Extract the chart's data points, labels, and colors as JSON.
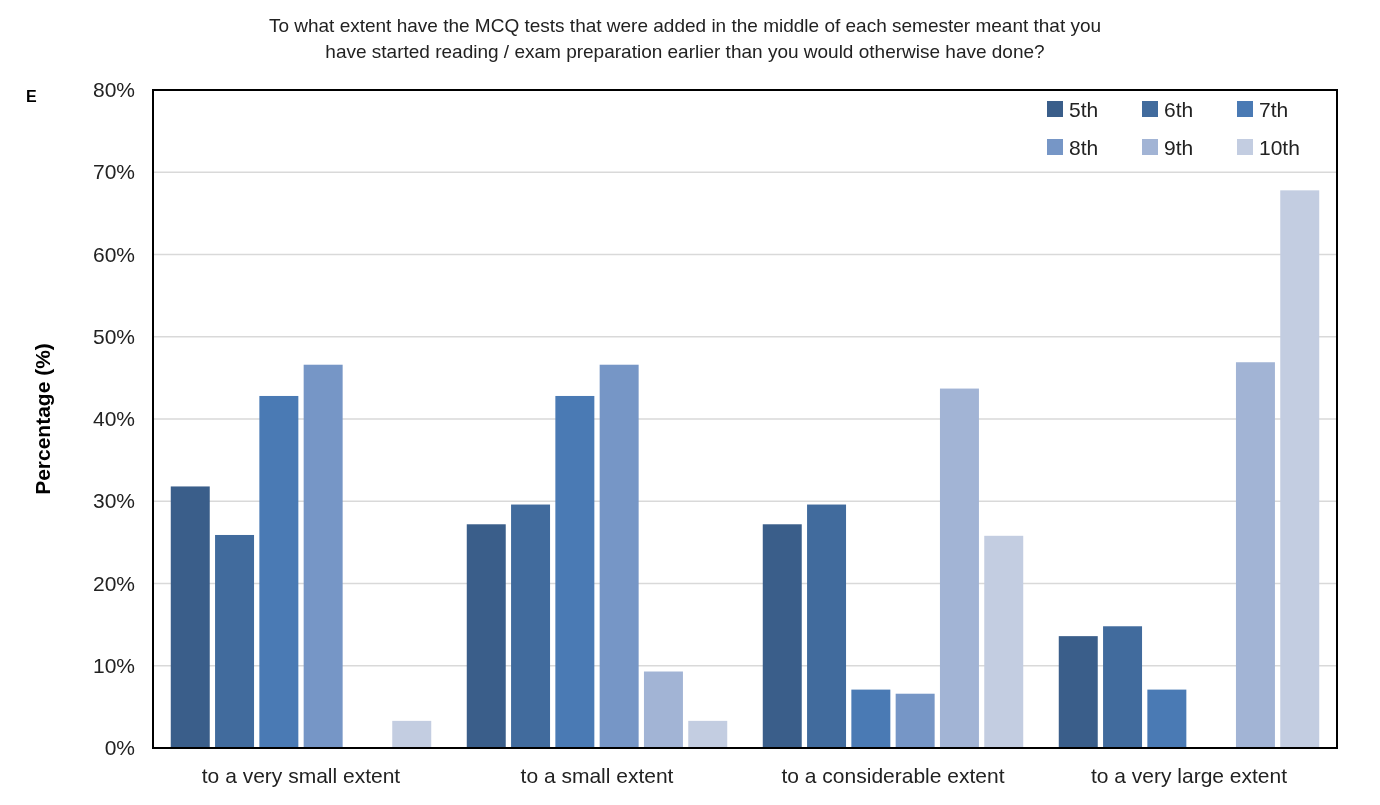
{
  "chart_data": {
    "type": "bar",
    "title": "To what extent have the MCQ tests that were added in the middle of each semester meant that you\nhave started reading / exam preparation earlier than you would otherwise have done?",
    "ylabel": "Percentage (%)",
    "annotations": [
      "E"
    ],
    "categories": [
      "to a very small extent",
      "to a small extent",
      "to a considerable extent",
      "to a very large extent"
    ],
    "series": [
      {
        "name": "5th",
        "color": "#3a5e8a",
        "values": [
          31.8,
          27.2,
          27.2,
          13.6
        ]
      },
      {
        "name": "6th",
        "color": "#416b9d",
        "values": [
          25.9,
          29.6,
          29.6,
          14.8
        ]
      },
      {
        "name": "7th",
        "color": "#4a7ab4",
        "values": [
          42.8,
          42.8,
          7.1,
          7.1
        ]
      },
      {
        "name": "8th",
        "color": "#7696c6",
        "values": [
          46.6,
          46.6,
          6.6,
          0
        ]
      },
      {
        "name": "9th",
        "color": "#a2b4d5",
        "values": [
          0,
          9.3,
          43.7,
          46.9
        ]
      },
      {
        "name": "10th",
        "color": "#c3cde1",
        "values": [
          3.3,
          3.3,
          25.8,
          67.8
        ]
      }
    ],
    "ylim": [
      0,
      80
    ],
    "yticks": [
      {
        "value": 0,
        "label": "0%"
      },
      {
        "value": 10,
        "label": "10%"
      },
      {
        "value": 20,
        "label": "20%"
      },
      {
        "value": 30,
        "label": "30%"
      },
      {
        "value": 40,
        "label": "40%"
      },
      {
        "value": 50,
        "label": "50%"
      },
      {
        "value": 60,
        "label": "60%"
      },
      {
        "value": 70,
        "label": "70%"
      },
      {
        "value": 80,
        "label": "80%"
      }
    ],
    "grid": "y",
    "legend": "top right"
  }
}
